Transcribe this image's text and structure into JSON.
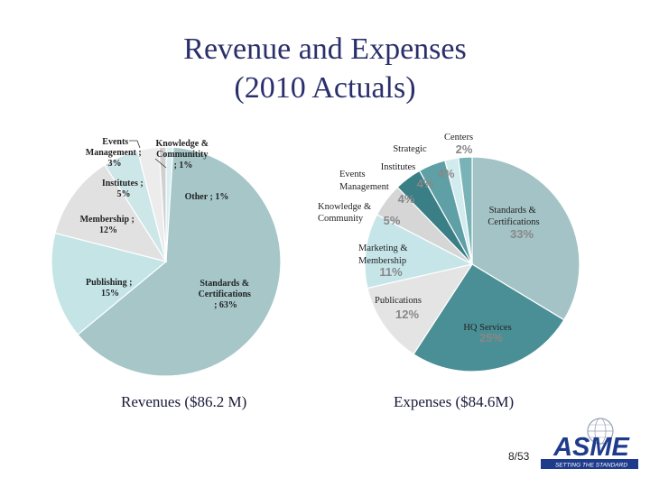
{
  "title_line1": "Revenue and Expenses",
  "title_line2": "(2010 Actuals)",
  "page_number": "8/53",
  "logo": {
    "text": "ASME",
    "tagline": "SETTING THE STANDARD"
  },
  "colors": {
    "title": "#2a2f6b",
    "rev_standards": "#a6c6c8",
    "rev_publishing": "#c4e4e6",
    "rev_membership": "#e1e1e1",
    "rev_institutes": "#cde6e8",
    "rev_events": "#ececec",
    "rev_knowledge": "#d0d0d0",
    "rev_other": "#d8eef0",
    "exp_standards": "#a3c3c6",
    "exp_hq": "#4a8f95",
    "exp_publications": "#e4e4e4",
    "exp_marketing": "#c6e5e8",
    "exp_knowledge": "#d6d6d6",
    "exp_events": "#3a7f86",
    "exp_institutes": "#5ea0a5",
    "exp_strategic": "#d2ebee",
    "exp_centers": "#7ab3b7"
  },
  "chart_data": [
    {
      "type": "pie",
      "caption": "Revenues ($86.2 M)",
      "slices": [
        {
          "label": "Standards & Certifications ; 63%",
          "value": 63
        },
        {
          "label": "Publishing ; 15%",
          "value": 15
        },
        {
          "label": "Membership ; 12%",
          "value": 12
        },
        {
          "label": "Institutes ; 5%",
          "value": 5
        },
        {
          "label": "Events Management ; 3%",
          "value": 3
        },
        {
          "label": "Knowledge & Communitity ; 1%",
          "value": 1
        },
        {
          "label": "Other ; 1%",
          "value": 1
        }
      ]
    },
    {
      "type": "pie",
      "caption": "Expenses ($84.6M)",
      "slices": [
        {
          "label": "Standards & Certifications",
          "pct": "33%",
          "value": 33
        },
        {
          "label": "HQ Services",
          "pct": "25%",
          "value": 25
        },
        {
          "label": "Publications",
          "pct": "12%",
          "value": 12
        },
        {
          "label": "Marketing & Membership",
          "pct": "11%",
          "value": 11
        },
        {
          "label": "Knowledge & Community",
          "pct": "5%",
          "value": 5
        },
        {
          "label": "Events Management",
          "pct": "4%",
          "value": 4
        },
        {
          "label": "Institutes",
          "pct": "4%",
          "value": 4
        },
        {
          "label": "Strategic",
          "pct": "",
          "value": 2
        },
        {
          "label": "Centers",
          "pct": "2%",
          "value": 2
        }
      ]
    }
  ]
}
